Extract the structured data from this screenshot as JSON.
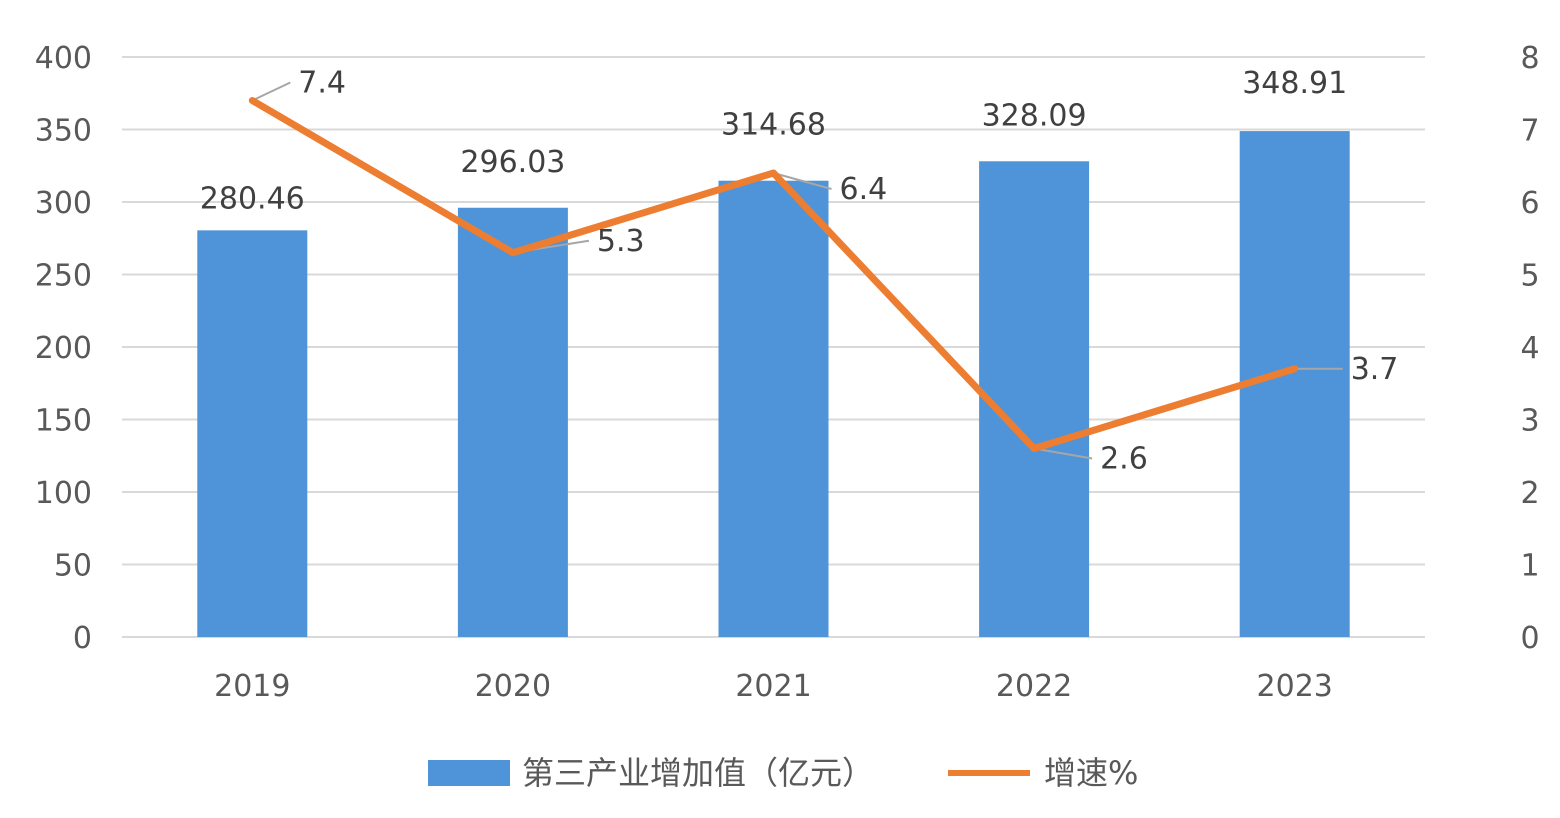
{
  "chart_data": {
    "type": "bar",
    "categories": [
      "2019",
      "2020",
      "2021",
      "2022",
      "2023"
    ],
    "series": [
      {
        "name": "第三产业增加值（亿元）",
        "type": "bar",
        "axis": "left",
        "values": [
          280.46,
          296.03,
          314.68,
          328.09,
          348.91
        ],
        "labels": [
          "280.46",
          "296.03",
          "314.68",
          "328.09",
          "348.91"
        ],
        "color": "#4f94d8"
      },
      {
        "name": "增速%",
        "type": "line",
        "axis": "right",
        "values": [
          7.4,
          5.3,
          6.4,
          2.6,
          3.7
        ],
        "labels": [
          "7.4",
          "5.3",
          "6.4",
          "2.6",
          "3.7"
        ],
        "color": "#ed7d31"
      }
    ],
    "y_left": {
      "min": 0,
      "max": 400,
      "ticks": [
        "0",
        "50",
        "100",
        "150",
        "200",
        "250",
        "300",
        "350",
        "400"
      ]
    },
    "y_right": {
      "min": 0,
      "max": 8,
      "ticks": [
        "0",
        "1",
        "2",
        "3",
        "4",
        "5",
        "6",
        "7",
        "8"
      ]
    },
    "grid": true,
    "legend_position": "bottom",
    "colors": {
      "grid": "#d9d9d9",
      "tick_text": "#595959",
      "label_text": "#404040",
      "leader": "#a6a6a6"
    }
  }
}
